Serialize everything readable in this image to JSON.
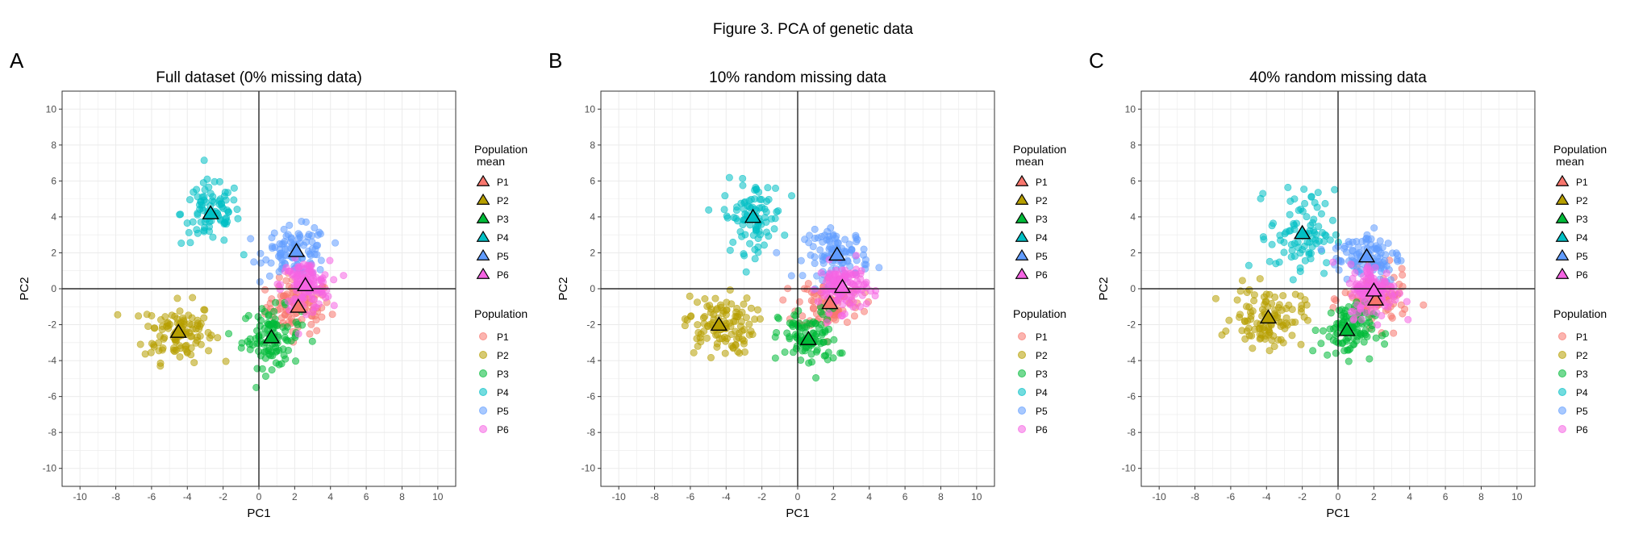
{
  "figure_title": "Figure 3. PCA of genetic data",
  "legend": {
    "mean_title_line1": "Population",
    "mean_title_line2": "mean",
    "points_title": "Population"
  },
  "chart_data": [
    {
      "type": "scatter",
      "panel_label": "A",
      "title": "Full dataset (0% missing data)",
      "xlabel": "PC1",
      "ylabel": "PC2",
      "xlim": [
        -11,
        11
      ],
      "ylim": [
        -11,
        11
      ],
      "xticks": [
        -10,
        -8,
        -6,
        -4,
        -2,
        0,
        2,
        4,
        6,
        8,
        10
      ],
      "yticks": [
        -10,
        -8,
        -6,
        -4,
        -2,
        0,
        2,
        4,
        6,
        8,
        10
      ],
      "grid": true,
      "reference_lines": {
        "x": 0,
        "y": 0
      },
      "legend_position": "right",
      "means": [
        {
          "name": "P1",
          "x": 2.2,
          "y": -1.0
        },
        {
          "name": "P2",
          "x": -4.5,
          "y": -2.4
        },
        {
          "name": "P3",
          "x": 0.7,
          "y": -2.7
        },
        {
          "name": "P4",
          "x": -2.7,
          "y": 4.2
        },
        {
          "name": "P5",
          "x": 2.1,
          "y": 2.1
        },
        {
          "name": "P6",
          "x": 2.6,
          "y": 0.2
        }
      ],
      "series": [
        {
          "name": "P1",
          "center": [
            2.2,
            -1.0
          ],
          "spread": [
            1.2,
            1.0
          ],
          "n": 100
        },
        {
          "name": "P2",
          "center": [
            -4.5,
            -2.4
          ],
          "spread": [
            1.3,
            1.1
          ],
          "n": 110
        },
        {
          "name": "P3",
          "center": [
            0.7,
            -2.7
          ],
          "spread": [
            1.1,
            1.1
          ],
          "n": 100
        },
        {
          "name": "P4",
          "center": [
            -2.7,
            4.2
          ],
          "spread": [
            1.1,
            1.2
          ],
          "n": 90
        },
        {
          "name": "P5",
          "center": [
            2.1,
            2.1
          ],
          "spread": [
            1.2,
            0.9
          ],
          "n": 100
        },
        {
          "name": "P6",
          "center": [
            2.6,
            0.2
          ],
          "spread": [
            0.9,
            0.9
          ],
          "n": 120
        }
      ]
    },
    {
      "type": "scatter",
      "panel_label": "B",
      "title": "10% random missing data",
      "xlabel": "PC1",
      "ylabel": "PC2",
      "xlim": [
        -11,
        11
      ],
      "ylim": [
        -11,
        11
      ],
      "xticks": [
        -10,
        -8,
        -6,
        -4,
        -2,
        0,
        2,
        4,
        6,
        8,
        10
      ],
      "yticks": [
        -10,
        -8,
        -6,
        -4,
        -2,
        0,
        2,
        4,
        6,
        8,
        10
      ],
      "grid": true,
      "reference_lines": {
        "x": 0,
        "y": 0
      },
      "legend_position": "right",
      "means": [
        {
          "name": "P1",
          "x": 1.8,
          "y": -0.8
        },
        {
          "name": "P2",
          "x": -4.4,
          "y": -2.0
        },
        {
          "name": "P3",
          "x": 0.6,
          "y": -2.8
        },
        {
          "name": "P4",
          "x": -2.5,
          "y": 4.0
        },
        {
          "name": "P5",
          "x": 2.2,
          "y": 1.9
        },
        {
          "name": "P6",
          "x": 2.5,
          "y": 0.1
        }
      ],
      "series": [
        {
          "name": "P1",
          "center": [
            1.8,
            -0.8
          ],
          "spread": [
            1.2,
            1.0
          ],
          "n": 100
        },
        {
          "name": "P2",
          "center": [
            -4.4,
            -2.0
          ],
          "spread": [
            1.3,
            1.1
          ],
          "n": 110
        },
        {
          "name": "P3",
          "center": [
            0.6,
            -2.8
          ],
          "spread": [
            1.1,
            1.1
          ],
          "n": 100
        },
        {
          "name": "P4",
          "center": [
            -2.5,
            4.0
          ],
          "spread": [
            1.1,
            1.3
          ],
          "n": 90
        },
        {
          "name": "P5",
          "center": [
            2.2,
            1.9
          ],
          "spread": [
            1.2,
            0.9
          ],
          "n": 100
        },
        {
          "name": "P6",
          "center": [
            2.5,
            0.1
          ],
          "spread": [
            0.9,
            0.9
          ],
          "n": 120
        }
      ]
    },
    {
      "type": "scatter",
      "panel_label": "C",
      "title": "40% random missing data",
      "xlabel": "PC1",
      "ylabel": "PC2",
      "xlim": [
        -11,
        11
      ],
      "ylim": [
        -11,
        11
      ],
      "xticks": [
        -10,
        -8,
        -6,
        -4,
        -2,
        0,
        2,
        4,
        6,
        8,
        10
      ],
      "yticks": [
        -10,
        -8,
        -6,
        -4,
        -2,
        0,
        2,
        4,
        6,
        8,
        10
      ],
      "grid": true,
      "reference_lines": {
        "x": 0,
        "y": 0
      },
      "legend_position": "right",
      "means": [
        {
          "name": "P1",
          "x": 2.1,
          "y": -0.6
        },
        {
          "name": "P2",
          "x": -3.9,
          "y": -1.6
        },
        {
          "name": "P3",
          "x": 0.5,
          "y": -2.3
        },
        {
          "name": "P4",
          "x": -2.0,
          "y": 3.1
        },
        {
          "name": "P5",
          "x": 1.6,
          "y": 1.8
        },
        {
          "name": "P6",
          "x": 2.0,
          "y": -0.1
        }
      ],
      "series": [
        {
          "name": "P1",
          "center": [
            2.1,
            -0.6
          ],
          "spread": [
            1.2,
            1.0
          ],
          "n": 100
        },
        {
          "name": "P2",
          "center": [
            -3.9,
            -1.6
          ],
          "spread": [
            1.3,
            1.1
          ],
          "n": 110
        },
        {
          "name": "P3",
          "center": [
            0.5,
            -2.3
          ],
          "spread": [
            1.0,
            1.0
          ],
          "n": 100
        },
        {
          "name": "P4",
          "center": [
            -2.0,
            3.1
          ],
          "spread": [
            1.2,
            1.6
          ],
          "n": 90
        },
        {
          "name": "P5",
          "center": [
            1.6,
            1.8
          ],
          "spread": [
            1.3,
            1.0
          ],
          "n": 100
        },
        {
          "name": "P6",
          "center": [
            2.0,
            -0.1
          ],
          "spread": [
            0.9,
            1.0
          ],
          "n": 120
        }
      ]
    }
  ],
  "colors": {
    "P1": "#F8766D",
    "P2": "#B79F00",
    "P3": "#00BA38",
    "P4": "#00BFC4",
    "P5": "#619CFF",
    "P6": "#F564E3"
  }
}
